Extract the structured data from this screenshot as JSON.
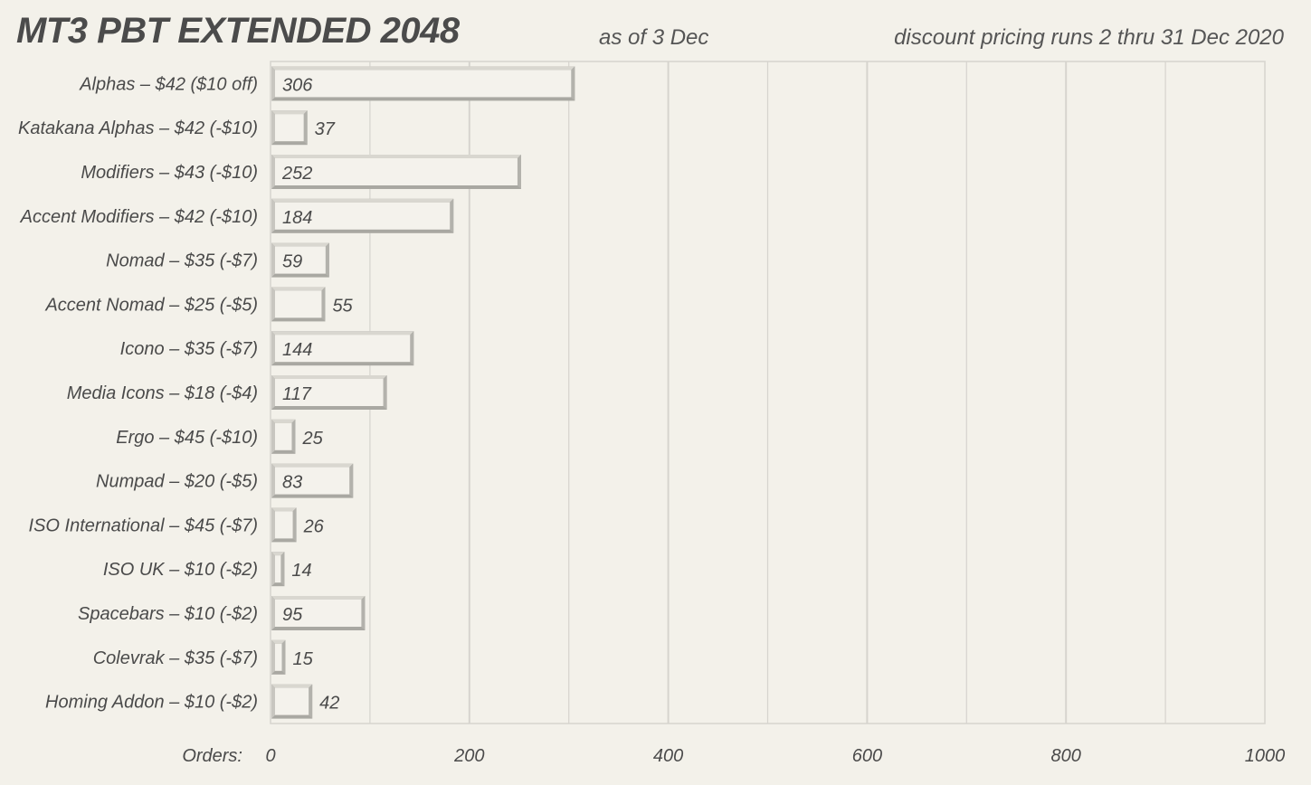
{
  "header": {
    "title": "MT3 PBT EXTENDED 2048",
    "as_of": "as of  3 Dec",
    "discount_note": "discount pricing runs 2 thru 31 Dec 2020"
  },
  "colors": {
    "background": "#f3f1ea",
    "bar_face": "#f4f2ec",
    "bar_light": "#d9d7d0",
    "bar_dark": "#a9a8a2",
    "grid": "#d6d4ce"
  },
  "chart_data": {
    "type": "bar",
    "orientation": "horizontal",
    "categories": [
      "Alphas – $42  ($10 off)",
      "Katakana Alphas – $42  (-$10)",
      "Modifiers – $43  (-$10)",
      "Accent Modifiers – $42  (-$10)",
      "Nomad – $35  (-$7)",
      "Accent Nomad – $25  (-$5)",
      "Icono – $35  (-$7)",
      "Media Icons – $18  (-$4)",
      "Ergo – $45  (-$10)",
      "Numpad – $20  (-$5)",
      "ISO International – $45  (-$7)",
      "ISO UK – $10  (-$2)",
      "Spacebars – $10  (-$2)",
      "Colevrak – $35  (-$7)",
      "Homing Addon – $10  (-$2)"
    ],
    "values": [
      306,
      37,
      252,
      184,
      59,
      55,
      144,
      117,
      25,
      83,
      26,
      14,
      95,
      15,
      42
    ],
    "title": "MT3 PBT EXTENDED 2048",
    "xlabel": "Orders:",
    "ylabel": "",
    "xlim": [
      0,
      1000
    ],
    "x_ticks": [
      0,
      200,
      400,
      600,
      800,
      1000
    ],
    "grid": true
  }
}
